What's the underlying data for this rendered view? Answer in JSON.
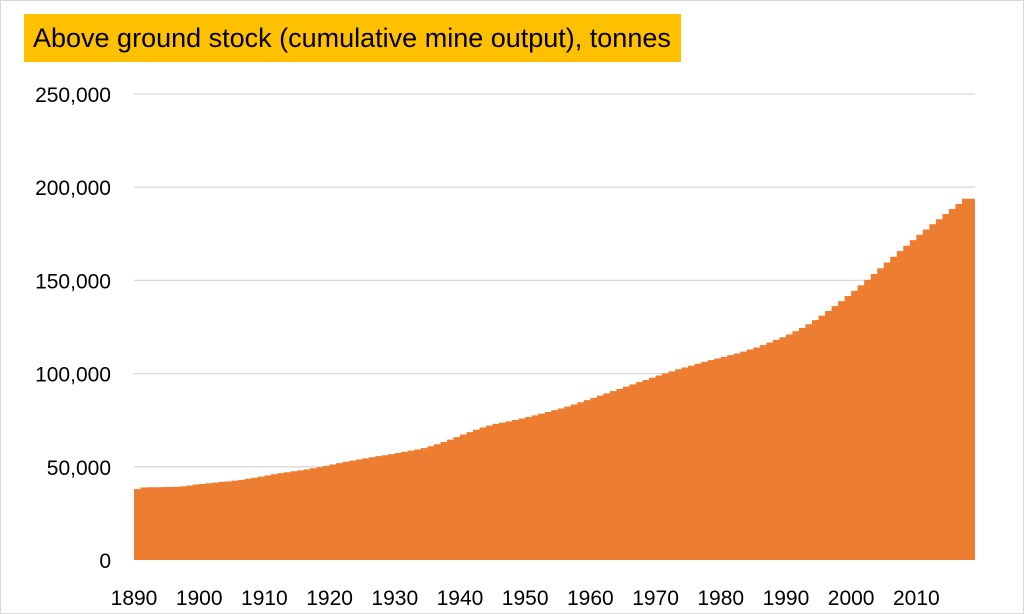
{
  "chart_data": {
    "type": "area",
    "title": "Above ground stock (cumulative mine output), tonnes",
    "xlabel": "",
    "ylabel": "",
    "x_range": [
      1890,
      2018
    ],
    "ylim": [
      0,
      250000
    ],
    "y_ticks": [
      0,
      50000,
      100000,
      150000,
      200000,
      250000
    ],
    "y_tick_labels": [
      "0",
      "50,000",
      "100,000",
      "150,000",
      "200,000",
      "250,000"
    ],
    "x_tick_labels": [
      "1890",
      "1900",
      "1910",
      "1920",
      "1930",
      "1940",
      "1950",
      "1960",
      "1970",
      "1980",
      "1990",
      "2000",
      "2010"
    ],
    "grid": true,
    "legend": "none",
    "colors": {
      "fill": "#ed7d31",
      "grid": "#d9d9d9",
      "title_bg": "#ffc000"
    },
    "series": [
      {
        "x": [
          1890,
          1891,
          1892,
          1893,
          1894,
          1895,
          1896,
          1897,
          1898,
          1899,
          1900,
          1901,
          1902,
          1903,
          1904,
          1905,
          1906,
          1907,
          1908,
          1909,
          1910,
          1911,
          1912,
          1913,
          1914,
          1915,
          1916,
          1917,
          1918,
          1919,
          1920,
          1921,
          1922,
          1923,
          1924,
          1925,
          1926,
          1927,
          1928,
          1929,
          1930,
          1931,
          1932,
          1933,
          1934,
          1935,
          1936,
          1937,
          1938,
          1939,
          1940,
          1941,
          1942,
          1943,
          1944,
          1945,
          1946,
          1947,
          1948,
          1949,
          1950,
          1951,
          1952,
          1953,
          1954,
          1955,
          1956,
          1957,
          1958,
          1959,
          1960,
          1961,
          1962,
          1963,
          1964,
          1965,
          1966,
          1967,
          1968,
          1969,
          1970,
          1971,
          1972,
          1973,
          1974,
          1975,
          1976,
          1977,
          1978,
          1979,
          1980,
          1981,
          1982,
          1983,
          1984,
          1985,
          1986,
          1987,
          1988,
          1989,
          1990,
          1991,
          1992,
          1993,
          1994,
          1995,
          1996,
          1997,
          1998,
          1999,
          2000,
          2001,
          2002,
          2003,
          2004,
          2005,
          2006,
          2007,
          2008,
          2009,
          2010,
          2011,
          2012,
          2013,
          2014,
          2015,
          2016,
          2017,
          2018
        ],
        "values": [
          38000,
          38900,
          39000,
          39000,
          39100,
          39200,
          39300,
          39500,
          40000,
          40500,
          40800,
          41200,
          41600,
          41900,
          42200,
          42600,
          43000,
          43600,
          44100,
          44700,
          45300,
          46000,
          46600,
          47100,
          47600,
          48100,
          48600,
          49200,
          49800,
          50500,
          51200,
          52000,
          52700,
          53300,
          53900,
          54500,
          55100,
          55700,
          56200,
          56800,
          57400,
          58100,
          58700,
          59300,
          60000,
          61000,
          62100,
          63300,
          64600,
          65900,
          67300,
          68600,
          69900,
          71100,
          72100,
          73000,
          73700,
          74400,
          75100,
          75900,
          76700,
          77600,
          78500,
          79400,
          80400,
          81300,
          82300,
          83400,
          84600,
          85800,
          87000,
          88200,
          89400,
          90600,
          91800,
          93000,
          94200,
          95400,
          96600,
          97800,
          99000,
          100100,
          101200,
          102300,
          103300,
          104300,
          105300,
          106300,
          107200,
          108100,
          109000,
          109900,
          110800,
          111800,
          112900,
          114000,
          115300,
          116700,
          118100,
          119500,
          121000,
          122700,
          124500,
          126500,
          128700,
          131100,
          133600,
          136200,
          138900,
          141600,
          144400,
          147300,
          150300,
          153400,
          156500,
          159600,
          162700,
          165700,
          168600,
          171600,
          174500,
          177300,
          180100,
          182800,
          185600,
          188300,
          191000,
          193800,
          193800
        ]
      }
    ]
  }
}
